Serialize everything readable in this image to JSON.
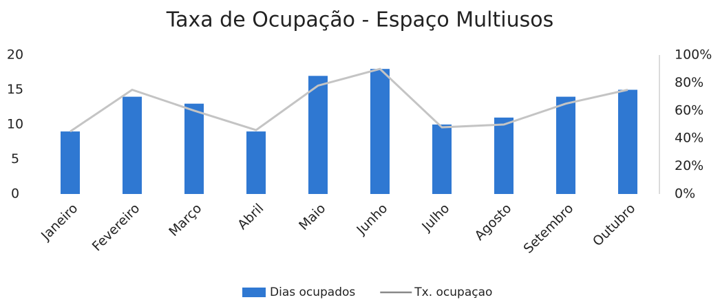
{
  "chart_data": {
    "type": "bar",
    "title": "Taxa de Ocupação - Espaço Multiusos",
    "categories": [
      "Janeiro",
      "Fevereiro",
      "Março",
      "Abril",
      "Maio",
      "Junho",
      "Julho",
      "Agosto",
      "Setembro",
      "Outubro"
    ],
    "series": [
      {
        "name": "Dias ocupados",
        "type": "bar",
        "color": "#2f78d2",
        "values": [
          9,
          14,
          13,
          9,
          17,
          18,
          10,
          11,
          14,
          15
        ]
      },
      {
        "name": "Tx. ocupaçao",
        "type": "line",
        "axis": "y2",
        "color": "#c4c4c4",
        "values": [
          45,
          75,
          60,
          46,
          78,
          90,
          48,
          50,
          65,
          75
        ]
      }
    ],
    "ylim": [
      0,
      20
    ],
    "yticks": [
      0,
      5,
      10,
      15,
      20
    ],
    "y2lim": [
      0,
      100
    ],
    "y2ticks": [
      {
        "value": 0,
        "label": "0%"
      },
      {
        "value": 20,
        "label": "20%"
      },
      {
        "value": 40,
        "label": "40%"
      },
      {
        "value": 60,
        "label": "60%"
      },
      {
        "value": 80,
        "label": "80%"
      },
      {
        "value": 100,
        "label": "100%"
      }
    ],
    "legend": "bottom"
  }
}
